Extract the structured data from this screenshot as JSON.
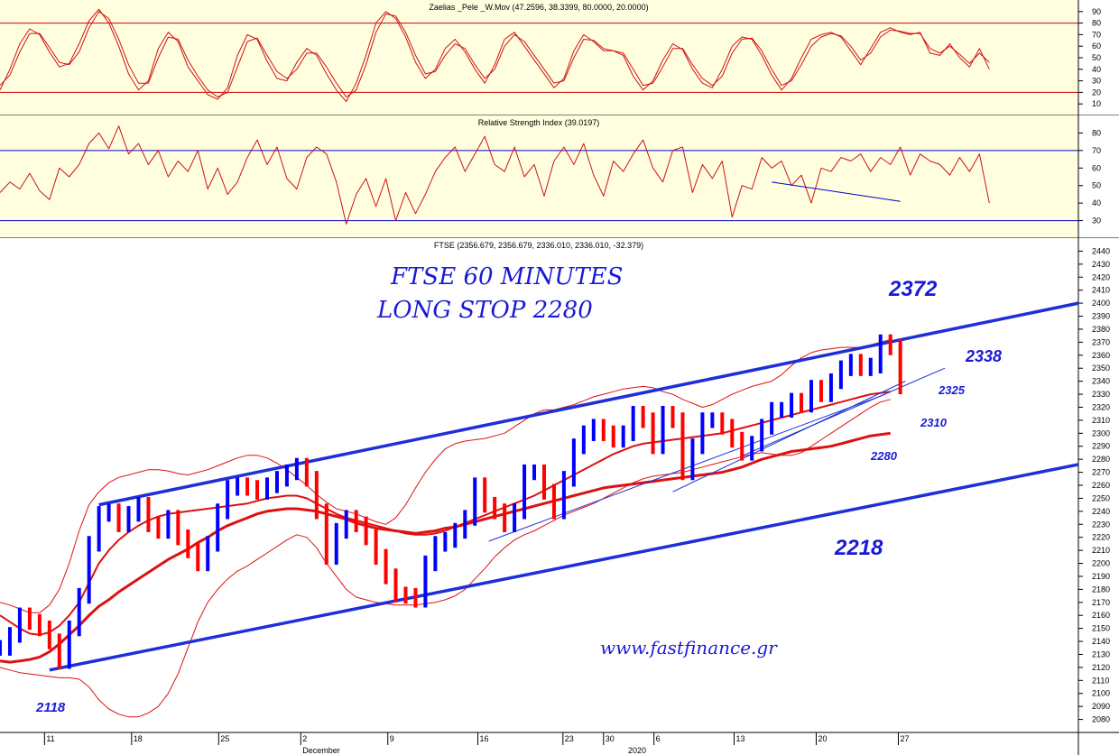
{
  "colors": {
    "panel_bg": "#ffffe0",
    "price_bg": "#ffffff",
    "osc": "#d01010",
    "level_osc": "#cc0000",
    "level_rsi": "#0000cc",
    "channel": "#1e2fd8",
    "price_up": "#0000ff",
    "price_down": "#ff0000",
    "ma": "#dd1111",
    "annot": "#1a1ad6"
  },
  "annotations": {
    "title_line1": "FTSE 60 MINUTES",
    "title_line2": "LONG STOP  2280",
    "website": "www.fastfinance.gr",
    "levels": [
      "2372",
      "2338",
      "2325",
      "2310",
      "2280",
      "2218",
      "2118"
    ]
  },
  "chart_data": [
    {
      "type": "line",
      "title": "Zaelias _Pele _W.Mov (47.2596, 38.3399, 80.0000, 20.0000)",
      "ylim": [
        0,
        100
      ],
      "yticks": [
        10,
        20,
        30,
        40,
        50,
        60,
        70,
        80,
        90
      ],
      "reference_lines": [
        80,
        20
      ],
      "series": [
        {
          "values": [
            22,
            40,
            62,
            75,
            70,
            55,
            42,
            45,
            62,
            82,
            92,
            80,
            60,
            36,
            22,
            30,
            58,
            72,
            64,
            42,
            30,
            18,
            14,
            24,
            52,
            70,
            66,
            47,
            32,
            30,
            46,
            58,
            52,
            36,
            22,
            12,
            28,
            52,
            80,
            90,
            84,
            68,
            46,
            32,
            40,
            58,
            66,
            55,
            40,
            28,
            44,
            66,
            72,
            60,
            48,
            36,
            24,
            32,
            56,
            70,
            64,
            56,
            56,
            52,
            34,
            22,
            30,
            48,
            62,
            57,
            40,
            28,
            24,
            40,
            60,
            68,
            66,
            52,
            35,
            22,
            32,
            50,
            66,
            70,
            72,
            68,
            56,
            44,
            58,
            72,
            76,
            72,
            70,
            72,
            54,
            52,
            62,
            50,
            42,
            58,
            40
          ]
        },
        {
          "values": [
            26,
            35,
            55,
            71,
            71,
            59,
            46,
            44,
            55,
            76,
            90,
            84,
            66,
            44,
            28,
            28,
            50,
            68,
            66,
            48,
            34,
            22,
            16,
            20,
            42,
            64,
            67,
            52,
            38,
            32,
            40,
            54,
            54,
            42,
            28,
            16,
            22,
            44,
            72,
            88,
            86,
            72,
            52,
            36,
            38,
            52,
            62,
            58,
            44,
            32,
            40,
            60,
            70,
            64,
            52,
            40,
            28,
            30,
            50,
            66,
            65,
            58,
            56,
            54,
            40,
            26,
            28,
            42,
            58,
            58,
            44,
            32,
            26,
            34,
            54,
            66,
            67,
            56,
            40,
            26,
            30,
            44,
            60,
            68,
            71,
            69,
            60,
            48,
            54,
            68,
            74,
            73,
            71,
            71,
            58,
            54,
            60,
            53,
            45,
            54,
            46
          ]
        }
      ]
    },
    {
      "type": "line",
      "title": "Relative Strength Index (39.0197)",
      "ylim": [
        20,
        90
      ],
      "yticks": [
        30,
        40,
        50,
        60,
        70,
        80
      ],
      "reference_lines": [
        70,
        30
      ],
      "series": [
        {
          "values": [
            46,
            52,
            48,
            57,
            47,
            42,
            60,
            55,
            62,
            74,
            80,
            71,
            84,
            68,
            74,
            62,
            70,
            55,
            64,
            58,
            70,
            48,
            60,
            45,
            52,
            66,
            76,
            62,
            72,
            54,
            48,
            66,
            72,
            68,
            52,
            28,
            45,
            54,
            38,
            54,
            30,
            46,
            34,
            45,
            58,
            66,
            72,
            58,
            68,
            78,
            62,
            58,
            72,
            55,
            62,
            44,
            64,
            72,
            62,
            74,
            56,
            44,
            64,
            58,
            68,
            76,
            60,
            52,
            70,
            72,
            46,
            62,
            54,
            64,
            32,
            50,
            48,
            66,
            60,
            64,
            50,
            56,
            40,
            60,
            58,
            66,
            64,
            68,
            58,
            66,
            62,
            72,
            56,
            68,
            64,
            62,
            56,
            66,
            58,
            68,
            40
          ]
        }
      ],
      "trendline": {
        "x": [
          78,
          91
        ],
        "y": [
          52,
          41
        ]
      }
    },
    {
      "type": "line",
      "title": "FTSE (2356.679, 2356.679, 2336.010, 2336.010, -32.379)",
      "ylim": [
        2070,
        2450
      ],
      "yticks": [
        2080,
        2090,
        2100,
        2110,
        2120,
        2130,
        2140,
        2150,
        2160,
        2170,
        2180,
        2190,
        2200,
        2210,
        2220,
        2230,
        2240,
        2250,
        2260,
        2270,
        2280,
        2290,
        2300,
        2310,
        2320,
        2330,
        2340,
        2350,
        2360,
        2370,
        2380,
        2390,
        2400,
        2410,
        2420,
        2430,
        2440
      ],
      "xticks": [
        {
          "x": 4.5,
          "label": "11"
        },
        {
          "x": 13.3,
          "label": "18"
        },
        {
          "x": 22.1,
          "label": "25"
        },
        {
          "x": 30.4,
          "label": "2"
        },
        {
          "x": 39.2,
          "label": "9"
        },
        {
          "x": 48.3,
          "label": "16"
        },
        {
          "x": 56.9,
          "label": "23"
        },
        {
          "x": 61.0,
          "label": "30"
        },
        {
          "x": 66.1,
          "label": "6"
        },
        {
          "x": 74.2,
          "label": "13"
        },
        {
          "x": 82.5,
          "label": "20"
        },
        {
          "x": 90.8,
          "label": "27"
        }
      ],
      "month_labels": [
        {
          "x": 30.4,
          "label": "December"
        },
        {
          "x": 63.3,
          "label": "2020"
        }
      ],
      "series": [
        {
          "name": "FTSE",
          "values": [
            2135,
            2145,
            2160,
            2155,
            2150,
            2140,
            2125,
            2150,
            2175,
            2215,
            2238,
            2240,
            2230,
            2238,
            2245,
            2230,
            2225,
            2235,
            2220,
            2210,
            2200,
            2215,
            2240,
            2258,
            2260,
            2258,
            2255,
            2260,
            2265,
            2270,
            2275,
            2265,
            2240,
            2205,
            2225,
            2235,
            2230,
            2220,
            2205,
            2190,
            2176,
            2175,
            2172,
            2200,
            2215,
            2218,
            2225,
            2235,
            2260,
            2245,
            2240,
            2230,
            2240,
            2270,
            2270,
            2255,
            2240,
            2265,
            2290,
            2300,
            2305,
            2300,
            2295,
            2300,
            2315,
            2310,
            2290,
            2315,
            2310,
            2270,
            2290,
            2310,
            2310,
            2305,
            2295,
            2285,
            2292,
            2305,
            2318,
            2318,
            2325,
            2322,
            2335,
            2330,
            2340,
            2350,
            2355,
            2350,
            2352,
            2370,
            2366,
            2336
          ]
        },
        {
          "name": "MA-long",
          "values": [
            2125,
            2124,
            2125,
            2126,
            2128,
            2132,
            2138,
            2145,
            2152,
            2160,
            2167,
            2172,
            2178,
            2183,
            2188,
            2193,
            2198,
            2203,
            2207,
            2211,
            2216,
            2220,
            2225,
            2229,
            2232,
            2235,
            2238,
            2240,
            2241,
            2242,
            2242,
            2241,
            2240,
            2238,
            2236,
            2234,
            2231,
            2229,
            2227,
            2226,
            2225,
            2224,
            2223,
            2224,
            2225,
            2227,
            2228,
            2230,
            2232,
            2234,
            2236,
            2238,
            2240,
            2242,
            2244,
            2246,
            2248,
            2250,
            2252,
            2254,
            2256,
            2258,
            2259,
            2260,
            2261,
            2262,
            2263,
            2264,
            2265,
            2266,
            2267,
            2268,
            2269,
            2270,
            2272,
            2274,
            2277,
            2280,
            2282,
            2284,
            2286,
            2287,
            2288,
            2289,
            2290,
            2292,
            2294,
            2296,
            2298,
            2299,
            2300
          ]
        },
        {
          "name": "MA-mid",
          "values": [
            2160,
            2155,
            2150,
            2146,
            2145,
            2147,
            2152,
            2160,
            2170,
            2185,
            2200,
            2210,
            2218,
            2224,
            2229,
            2233,
            2236,
            2238,
            2239,
            2240,
            2241,
            2242,
            2243,
            2244,
            2245,
            2246,
            2248,
            2250,
            2251,
            2252,
            2252,
            2250,
            2246,
            2242,
            2238,
            2235,
            2233,
            2231,
            2229,
            2227,
            2225,
            2223,
            2222,
            2222,
            2223,
            2225,
            2228,
            2231,
            2234,
            2237,
            2240,
            2243,
            2246,
            2249,
            2252,
            2256,
            2260,
            2264,
            2268,
            2272,
            2276,
            2280,
            2284,
            2287,
            2290,
            2292,
            2293,
            2294,
            2295,
            2296,
            2297,
            2298,
            2299,
            2300,
            2302,
            2304,
            2306,
            2308,
            2310,
            2312,
            2314,
            2316,
            2318,
            2320,
            2322,
            2324,
            2326,
            2328,
            2330,
            2331,
            2332
          ]
        },
        {
          "name": "BB-upper",
          "values": [
            2170,
            2168,
            2165,
            2162,
            2162,
            2168,
            2180,
            2200,
            2225,
            2245,
            2255,
            2262,
            2266,
            2268,
            2270,
            2272,
            2272,
            2271,
            2269,
            2268,
            2270,
            2272,
            2275,
            2278,
            2281,
            2283,
            2283,
            2281,
            2277,
            2272,
            2266,
            2260,
            2253,
            2247,
            2242,
            2240,
            2238,
            2235,
            2232,
            2230,
            2235,
            2245,
            2258,
            2270,
            2280,
            2288,
            2292,
            2294,
            2295,
            2296,
            2298,
            2300,
            2305,
            2310,
            2315,
            2318,
            2318,
            2320,
            2322,
            2325,
            2328,
            2330,
            2332,
            2334,
            2335,
            2336,
            2335,
            2332,
            2330,
            2326,
            2323,
            2320,
            2322,
            2326,
            2330,
            2333,
            2336,
            2338,
            2340,
            2345,
            2352,
            2358,
            2362,
            2364,
            2365,
            2366,
            2366,
            2366,
            2368,
            2370,
            2372
          ]
        },
        {
          "name": "BB-lower",
          "values": [
            2120,
            2118,
            2116,
            2115,
            2114,
            2113,
            2112,
            2112,
            2111,
            2105,
            2095,
            2088,
            2084,
            2082,
            2082,
            2085,
            2090,
            2100,
            2115,
            2135,
            2155,
            2170,
            2180,
            2188,
            2194,
            2198,
            2203,
            2208,
            2213,
            2218,
            2222,
            2220,
            2212,
            2200,
            2190,
            2180,
            2174,
            2172,
            2170,
            2169,
            2168,
            2168,
            2168,
            2169,
            2170,
            2172,
            2175,
            2180,
            2188,
            2196,
            2205,
            2212,
            2218,
            2222,
            2225,
            2229,
            2233,
            2237,
            2240,
            2243,
            2246,
            2250,
            2254,
            2258,
            2262,
            2265,
            2267,
            2268,
            2269,
            2270,
            2272,
            2274,
            2276,
            2278,
            2280,
            2282,
            2284,
            2285,
            2284,
            2283,
            2283,
            2285,
            2290,
            2295,
            2300,
            2305,
            2310,
            2315,
            2320,
            2324,
            2326
          ]
        }
      ],
      "channel_lines": [
        {
          "x": [
            10.0,
            109.0
          ],
          "y": [
            2245,
            2400
          ]
        },
        {
          "x": [
            5.0,
            109.0
          ],
          "y": [
            2118,
            2276
          ]
        }
      ],
      "trend_lines": [
        {
          "x": [
            68.0,
            91.5
          ],
          "y": [
            2255,
            2340
          ]
        },
        {
          "x": [
            74.8,
            95.5
          ],
          "y": [
            2282,
            2350
          ]
        },
        {
          "x": [
            49.4,
            89.5
          ],
          "y": [
            2217,
            2330
          ]
        }
      ]
    }
  ]
}
